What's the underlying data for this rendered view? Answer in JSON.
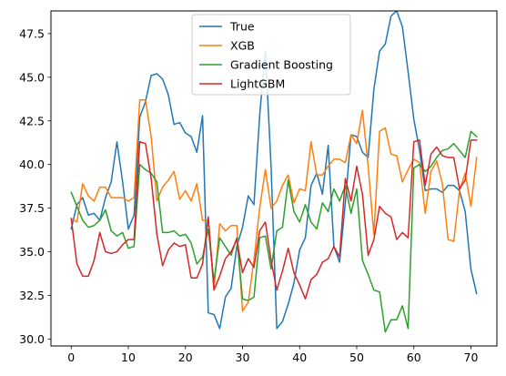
{
  "chart_data": {
    "type": "line",
    "title": "",
    "xlabel": "",
    "ylabel": "",
    "xlim": [
      -3.55,
      74.55
    ],
    "ylim": [
      29.6,
      48.8
    ],
    "x_ticks": [
      0,
      10,
      20,
      30,
      40,
      50,
      60,
      70
    ],
    "y_ticks": [
      30.0,
      32.5,
      35.0,
      37.5,
      40.0,
      42.5,
      45.0,
      47.5
    ],
    "y_tick_labels": [
      "30.0",
      "32.5",
      "35.0",
      "37.5",
      "40.0",
      "42.5",
      "45.0",
      "47.5"
    ],
    "legend_position": "top-center",
    "grid": false,
    "series": [
      {
        "name": "True",
        "color": "#1f77b4",
        "values": [
          36.3,
          37.7,
          38.1,
          37.1,
          37.2,
          36.8,
          38.1,
          39.0,
          41.3,
          39.0,
          36.3,
          37.1,
          42.7,
          43.6,
          45.1,
          45.2,
          44.9,
          44.0,
          42.3,
          42.4,
          41.8,
          41.6,
          40.7,
          42.8,
          31.5,
          31.4,
          30.6,
          32.4,
          32.9,
          35.3,
          36.4,
          38.2,
          37.7,
          42.8,
          46.5,
          39.9,
          30.6,
          31.0,
          32.0,
          33.2,
          35.1,
          35.8,
          38.8,
          39.5,
          38.3,
          41.1,
          35.3,
          34.4,
          37.8,
          41.7,
          41.6,
          40.7,
          40.4,
          44.3,
          46.5,
          46.9,
          48.5,
          48.8,
          47.9,
          45.3,
          42.6,
          40.8,
          38.5,
          38.6,
          38.6,
          38.4,
          38.8,
          38.8,
          38.5,
          37.3,
          34.0,
          32.6
        ]
      },
      {
        "name": "XGB",
        "color": "#ff7f0e",
        "values": [
          36.9,
          36.7,
          38.9,
          38.2,
          37.9,
          38.7,
          38.7,
          38.1,
          38.1,
          38.1,
          37.9,
          38.1,
          43.7,
          43.7,
          41.6,
          37.9,
          38.7,
          39.1,
          39.6,
          38.0,
          38.5,
          37.9,
          38.9,
          36.8,
          36.8,
          32.9,
          36.6,
          36.2,
          36.5,
          36.5,
          31.6,
          32.1,
          34.5,
          37.5,
          39.7,
          37.5,
          37.9,
          38.8,
          39.4,
          37.8,
          38.6,
          38.5,
          41.3,
          39.4,
          39.4,
          39.9,
          40.3,
          40.3,
          40.1,
          41.7,
          41.2,
          43.1,
          39.9,
          36.0,
          41.9,
          42.1,
          40.6,
          40.5,
          39.0,
          39.7,
          40.3,
          40.1,
          37.2,
          39.6,
          40.2,
          38.9,
          35.7,
          35.6,
          38.5,
          39.5,
          37.6,
          40.4
        ]
      },
      {
        "name": "Gradient Boosting",
        "color": "#2ca02c",
        "values": [
          38.4,
          37.6,
          36.8,
          36.4,
          36.5,
          36.8,
          37.4,
          36.2,
          35.9,
          36.1,
          35.2,
          35.3,
          40.0,
          39.7,
          39.5,
          39.0,
          36.1,
          36.1,
          36.2,
          35.9,
          36.0,
          35.5,
          34.3,
          34.7,
          36.3,
          33.3,
          35.8,
          35.3,
          34.8,
          35.8,
          32.3,
          32.2,
          32.4,
          35.8,
          35.9,
          34.0,
          36.2,
          36.4,
          39.1,
          37.3,
          36.7,
          37.7,
          36.7,
          36.3,
          37.8,
          37.3,
          38.6,
          37.9,
          38.8,
          37.2,
          38.6,
          34.5,
          33.7,
          32.8,
          32.7,
          30.4,
          31.1,
          31.1,
          31.9,
          30.6,
          39.8,
          40.0,
          39.6,
          39.9,
          40.4,
          40.8,
          40.9,
          41.2,
          40.8,
          40.4,
          41.9,
          41.6
        ]
      },
      {
        "name": "LightGBM",
        "color": "#d62728",
        "values": [
          36.9,
          34.3,
          33.6,
          33.6,
          34.5,
          36.1,
          35.0,
          34.9,
          35.0,
          35.4,
          35.7,
          35.7,
          41.3,
          41.2,
          39.2,
          36.0,
          34.2,
          35.1,
          35.5,
          35.3,
          35.4,
          33.5,
          33.5,
          34.3,
          37.0,
          32.8,
          33.6,
          34.6,
          35.0,
          35.7,
          33.8,
          34.6,
          34.1,
          36.2,
          36.7,
          34.5,
          32.8,
          33.9,
          35.2,
          33.8,
          33.1,
          32.3,
          33.4,
          33.7,
          34.4,
          34.6,
          35.3,
          34.7,
          39.2,
          37.9,
          39.9,
          38.3,
          34.8,
          35.7,
          37.6,
          37.2,
          37.0,
          35.7,
          36.1,
          35.8,
          41.3,
          41.4,
          38.8,
          40.6,
          41.0,
          40.5,
          40.4,
          40.4,
          38.6,
          39.1,
          41.4,
          41.4
        ]
      }
    ]
  }
}
